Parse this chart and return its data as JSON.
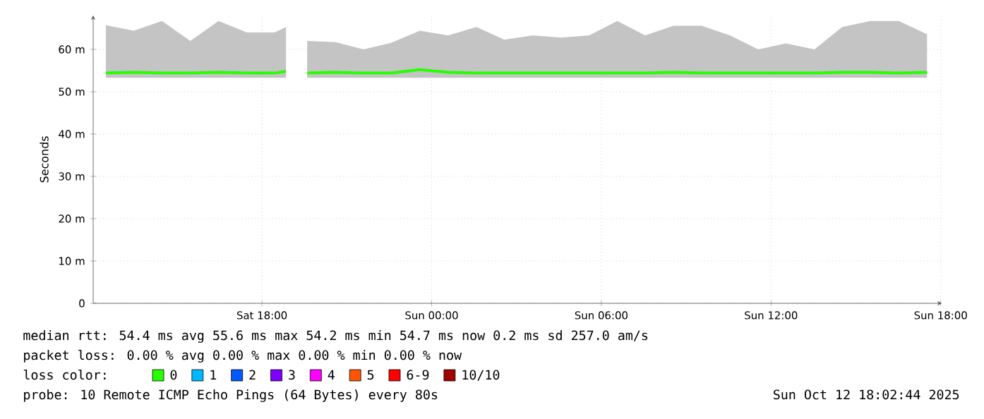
{
  "chart_data": {
    "type": "line",
    "ylabel": "Seconds",
    "xlim": [
      "2025-10-11T12:02",
      "2025-10-12T18:02"
    ],
    "xticks": [
      {
        "value": "2025-10-11T18:00",
        "label": "Sat 18:00"
      },
      {
        "value": "2025-10-12T00:00",
        "label": "Sun 00:00"
      },
      {
        "value": "2025-10-12T06:00",
        "label": "Sun 06:00"
      },
      {
        "value": "2025-10-12T12:00",
        "label": "Sun 12:00"
      },
      {
        "value": "2025-10-12T18:00",
        "label": "Sun 18:00"
      }
    ],
    "ylim": [
      0,
      68
    ],
    "yticks": [
      0,
      {
        "value": 10,
        "label": "10 m"
      },
      {
        "value": 20,
        "label": "20 m"
      },
      {
        "value": 30,
        "label": "30 m"
      },
      {
        "value": 40,
        "label": "40 m"
      },
      {
        "value": 50,
        "label": "50 m"
      },
      {
        "value": 60,
        "label": "60 m"
      }
    ],
    "x": [
      "2025-10-11T12:29",
      "2025-10-11T13:28",
      "2025-10-11T14:28",
      "2025-10-11T15:28",
      "2025-10-11T16:28",
      "2025-10-11T17:28",
      "2025-10-11T18:27",
      "2025-10-11T18:51",
      "2025-10-11T19:09",
      "2025-10-11T19:36",
      "2025-10-11T20:36",
      "2025-10-11T21:36",
      "2025-10-11T22:35",
      "2025-10-11T23:35",
      "2025-10-12T00:35",
      "2025-10-12T01:35",
      "2025-10-12T02:34",
      "2025-10-12T03:34",
      "2025-10-12T04:34",
      "2025-10-12T05:34",
      "2025-10-12T06:34",
      "2025-10-12T07:33",
      "2025-10-12T08:33",
      "2025-10-12T09:33",
      "2025-10-12T10:33",
      "2025-10-12T11:33",
      "2025-10-12T12:32",
      "2025-10-12T13:32",
      "2025-10-12T14:31",
      "2025-10-12T15:31",
      "2025-10-12T16:31",
      "2025-10-12T17:31"
    ],
    "series": [
      {
        "name": "0",
        "color": "#26ff00",
        "values": [
          54.4,
          54.6,
          54.4,
          54.4,
          54.6,
          54.4,
          54.4,
          54.8,
          null,
          54.4,
          54.6,
          54.4,
          54.4,
          55.2,
          54.6,
          54.4,
          54.4,
          54.4,
          54.4,
          54.4,
          54.4,
          54.4,
          54.6,
          54.4,
          54.4,
          54.4,
          54.4,
          54.4,
          54.6,
          54.6,
          54.4,
          54.6
        ],
        "lower": [
          53.3,
          53.3,
          53.3,
          53.3,
          53.3,
          53.3,
          53.3,
          53.3,
          null,
          53.3,
          53.3,
          53.3,
          53.3,
          53.3,
          53.3,
          53.3,
          53.3,
          53.3,
          53.3,
          53.3,
          53.3,
          53.3,
          53.3,
          53.3,
          53.3,
          53.3,
          53.3,
          53.3,
          53.3,
          53.3,
          53.3,
          53.3
        ],
        "upper": [
          65.7,
          64.4,
          66.7,
          62,
          66.7,
          64,
          64,
          65.3,
          null,
          62,
          61.7,
          60,
          61.6,
          64.4,
          63.3,
          65.3,
          62.3,
          63.3,
          62.8,
          63.3,
          66.7,
          63.3,
          65.6,
          65.6,
          63.3,
          60,
          61.4,
          60,
          65.3,
          66.7,
          66.7,
          63.6
        ]
      },
      {
        "name": "1",
        "color": "#00b8ff",
        "values": [
          null,
          null,
          null,
          null,
          null,
          null,
          null,
          null,
          null,
          null,
          null,
          null,
          null,
          null,
          null,
          null,
          null,
          null,
          null,
          null,
          null,
          null,
          null,
          null,
          null,
          null,
          null,
          null,
          null,
          null,
          null,
          null
        ]
      },
      {
        "name": "2",
        "color": "#0059ff",
        "values": [
          null,
          null,
          null,
          null,
          null,
          null,
          null,
          null,
          null,
          null,
          null,
          null,
          null,
          null,
          null,
          null,
          null,
          null,
          null,
          null,
          null,
          null,
          null,
          null,
          null,
          null,
          null,
          null,
          null,
          null,
          null,
          null
        ]
      },
      {
        "name": "3",
        "color": "#7e00ff",
        "values": [
          null,
          null,
          null,
          null,
          null,
          null,
          null,
          null,
          null,
          null,
          null,
          null,
          null,
          null,
          null,
          null,
          null,
          null,
          null,
          null,
          null,
          null,
          null,
          null,
          null,
          null,
          null,
          null,
          null,
          null,
          null,
          null
        ]
      },
      {
        "name": "4",
        "color": "#ff00ff",
        "values": [
          null,
          null,
          null,
          null,
          null,
          null,
          null,
          null,
          null,
          null,
          null,
          null,
          null,
          null,
          null,
          null,
          null,
          null,
          null,
          null,
          null,
          null,
          null,
          null,
          null,
          null,
          null,
          null,
          null,
          null,
          null,
          null
        ]
      },
      {
        "name": "5",
        "color": "#ff5500",
        "values": [
          null,
          null,
          null,
          null,
          null,
          null,
          null,
          null,
          null,
          null,
          null,
          null,
          null,
          null,
          null,
          null,
          null,
          null,
          null,
          null,
          null,
          null,
          null,
          null,
          null,
          null,
          null,
          null,
          null,
          null,
          null,
          null
        ]
      },
      {
        "name": "6-9",
        "color": "#ff0000",
        "values": [
          null,
          null,
          null,
          null,
          null,
          null,
          null,
          null,
          null,
          null,
          null,
          null,
          null,
          null,
          null,
          null,
          null,
          null,
          null,
          null,
          null,
          null,
          null,
          null,
          null,
          null,
          null,
          null,
          null,
          null,
          null,
          null
        ]
      },
      {
        "name": "10/10",
        "color": "#a10000",
        "values": [
          null,
          null,
          null,
          null,
          null,
          null,
          null,
          null,
          null,
          null,
          null,
          null,
          null,
          null,
          null,
          null,
          null,
          null,
          null,
          null,
          null,
          null,
          null,
          null,
          null,
          null,
          null,
          null,
          null,
          null,
          null,
          null
        ]
      }
    ],
    "legend": "bottom",
    "legend_title": "loss color:",
    "grid": true,
    "line_style": "solid",
    "annotations": [
      "median rtt:  54.4 ms avg  55.6 ms max  54.2 ms min  54.7 ms now  0.2 ms sd  257.0  am/s",
      "packet loss: 0.00 % avg  0.00 % max  0.00 % min  0.00 % now",
      "probe:  10 Remote ICMP Echo Pings (64 Bytes) every 80s",
      "Sun Oct 12 18:02:44 2025"
    ]
  }
}
